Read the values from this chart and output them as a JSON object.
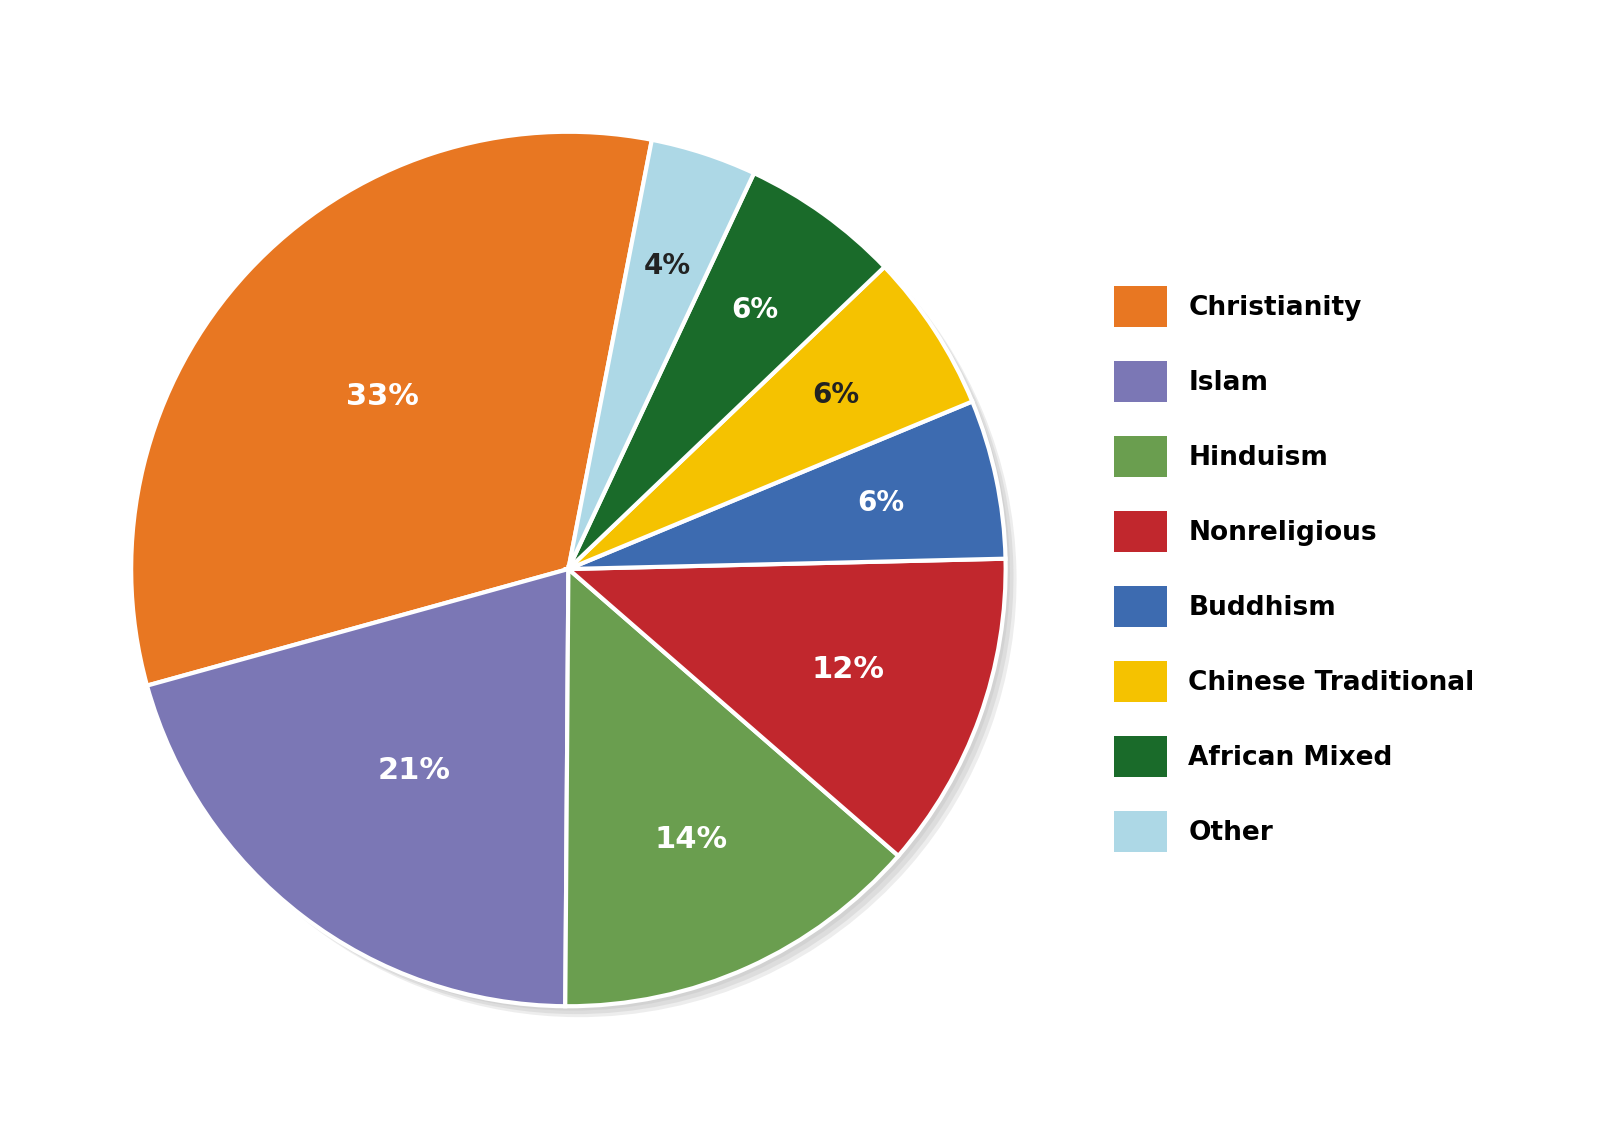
{
  "labels": [
    "Christianity",
    "Islam",
    "Hinduism",
    "Nonreligious",
    "Buddhism",
    "Chinese Traditional",
    "African Mixed",
    "Other"
  ],
  "values": [
    33,
    21,
    14,
    12,
    6,
    6,
    6,
    4
  ],
  "colors": [
    "#E87722",
    "#7B77B5",
    "#6A9E4F",
    "#C1272D",
    "#3D6BB0",
    "#F5C200",
    "#1A6B2A",
    "#ADD8E6"
  ],
  "text_colors": [
    "white",
    "white",
    "white",
    "white",
    "white",
    "#222222",
    "white",
    "#222222"
  ],
  "startangle": 79,
  "background_color": "#ffffff",
  "legend_fontsize": 19,
  "label_fontsize": 22
}
